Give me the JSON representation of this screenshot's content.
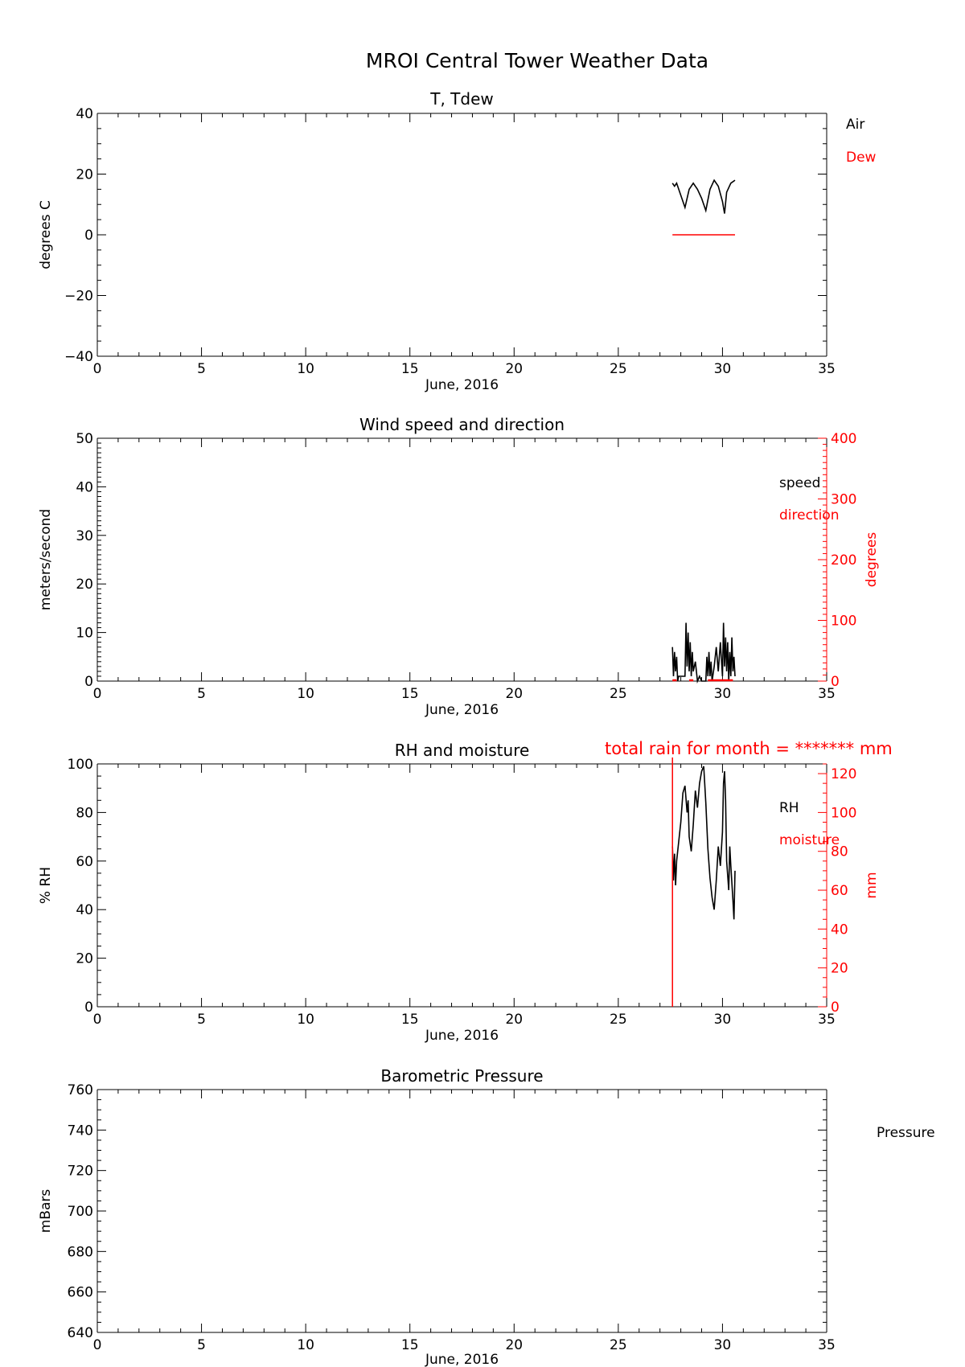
{
  "figure_title": "MROI Central Tower Weather Data",
  "colors": {
    "ink": "#000000",
    "accent": "#ff0000"
  },
  "chart_data": [
    {
      "type": "line",
      "title": "T, Tdew",
      "xlabel": "June, 2016",
      "ylabel": "degrees C",
      "xlim": [
        0,
        35
      ],
      "ylim": [
        -40,
        40
      ],
      "xticks": [
        0,
        5,
        10,
        15,
        20,
        25,
        30,
        35
      ],
      "yticks": [
        -40,
        -20,
        0,
        20,
        40
      ],
      "legend": [
        "Air",
        "Dew"
      ],
      "series": [
        {
          "name": "Air",
          "color": "#000000",
          "x": [
            27.6,
            27.7,
            27.8,
            28.0,
            28.2,
            28.4,
            28.6,
            28.8,
            29.0,
            29.2,
            29.4,
            29.6,
            29.8,
            30.0,
            30.1,
            30.2,
            30.4,
            30.6
          ],
          "y": [
            17,
            16,
            17,
            13,
            9,
            15,
            17,
            15,
            12,
            8,
            15,
            18,
            16,
            11,
            7,
            14,
            17,
            18
          ]
        },
        {
          "name": "Dew",
          "color": "#ff0000",
          "x": [
            27.6,
            30.6
          ],
          "y": [
            0,
            0
          ]
        }
      ]
    },
    {
      "type": "line",
      "title": "Wind speed and direction",
      "xlabel": "June, 2016",
      "ylabel": "meters/second",
      "y2label": "degrees",
      "xlim": [
        0,
        35
      ],
      "ylim": [
        0,
        50
      ],
      "y2lim": [
        0,
        400
      ],
      "xticks": [
        0,
        5,
        10,
        15,
        20,
        25,
        30,
        35
      ],
      "yticks": [
        0,
        10,
        20,
        30,
        40,
        50
      ],
      "y2ticks": [
        0,
        100,
        200,
        300,
        400
      ],
      "legend": [
        "speed",
        "direction"
      ],
      "series": [
        {
          "name": "speed",
          "color": "#000000",
          "x": [
            27.6,
            27.65,
            27.7,
            27.75,
            27.8,
            27.85,
            27.9,
            28.0,
            28.2,
            28.25,
            28.3,
            28.35,
            28.4,
            28.45,
            28.5,
            28.55,
            28.6,
            28.7,
            28.8,
            28.9,
            29.0,
            29.2,
            29.25,
            29.3,
            29.35,
            29.4,
            29.45,
            29.5,
            29.6,
            29.7,
            29.8,
            29.9,
            30.0,
            30.05,
            30.1,
            30.15,
            30.2,
            30.25,
            30.3,
            30.35,
            30.4,
            30.45,
            30.5,
            30.55,
            30.6
          ],
          "y": [
            7,
            1,
            6,
            2,
            5,
            0,
            1,
            1,
            1,
            12,
            3,
            10,
            2,
            8,
            1,
            6,
            2,
            4,
            0,
            1,
            0,
            0,
            5,
            1,
            6,
            1,
            4,
            0,
            3,
            7,
            2,
            8,
            1,
            12,
            3,
            9,
            2,
            8,
            0,
            6,
            1,
            9,
            2,
            5,
            1
          ]
        },
        {
          "name": "direction",
          "color": "#ff0000",
          "segments_x": [
            [
              27.6,
              27.8
            ],
            [
              28.4,
              28.6
            ],
            [
              29.3,
              30.5
            ]
          ],
          "y": 0
        }
      ]
    },
    {
      "type": "line",
      "title": "RH and moisture",
      "annotation": "total rain for month = ******* mm",
      "xlabel": "June, 2016",
      "ylabel": "% RH",
      "y2label": "mm",
      "xlim": [
        0,
        35
      ],
      "ylim": [
        0,
        100
      ],
      "y2lim": [
        0,
        125
      ],
      "xticks": [
        0,
        5,
        10,
        15,
        20,
        25,
        30,
        35
      ],
      "yticks": [
        0,
        20,
        40,
        60,
        80,
        100
      ],
      "y2ticks": [
        0,
        20,
        40,
        60,
        80,
        100,
        120
      ],
      "legend": [
        "RH",
        "moisture"
      ],
      "series": [
        {
          "name": "RH",
          "color": "#000000",
          "x": [
            27.6,
            27.65,
            27.7,
            27.75,
            27.8,
            28.0,
            28.1,
            28.2,
            28.3,
            28.35,
            28.4,
            28.5,
            28.6,
            28.7,
            28.8,
            28.9,
            29.0,
            29.1,
            29.2,
            29.3,
            29.4,
            29.5,
            29.6,
            29.7,
            29.8,
            29.9,
            30.0,
            30.05,
            30.1,
            30.15,
            30.2,
            30.3,
            30.35,
            30.4,
            30.5,
            30.55,
            30.6
          ],
          "y": [
            66,
            52,
            63,
            50,
            60,
            76,
            88,
            91,
            80,
            85,
            70,
            64,
            75,
            89,
            82,
            92,
            97,
            99,
            84,
            65,
            53,
            45,
            40,
            52,
            66,
            58,
            72,
            92,
            97,
            85,
            60,
            48,
            66,
            58,
            44,
            36,
            56
          ]
        },
        {
          "name": "moisture",
          "color": "#ff0000",
          "vline_x": 27.6
        }
      ]
    },
    {
      "type": "line",
      "title": "Barometric Pressure",
      "xlabel": "June, 2016",
      "ylabel": "mBars",
      "xlim": [
        0,
        35
      ],
      "ylim": [
        640,
        760
      ],
      "xticks": [
        0,
        5,
        10,
        15,
        20,
        25,
        30,
        35
      ],
      "yticks": [
        640,
        660,
        680,
        700,
        720,
        740,
        760
      ],
      "legend": [
        "Pressure"
      ],
      "series": []
    }
  ]
}
